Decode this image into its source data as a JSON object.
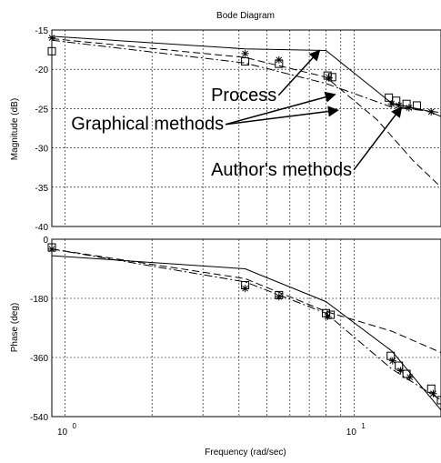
{
  "chart_data": {
    "type": "line",
    "title": "Bode Diagram",
    "xlabel": "Frequency  (rad/sec)",
    "x_scale": "log",
    "x_ticks": [
      {
        "value": 1,
        "label": "10",
        "exponent": "0"
      },
      {
        "value": 10,
        "label": "10",
        "exponent": "1"
      }
    ],
    "xlim": [
      0.9,
      20
    ],
    "subplots": [
      {
        "ylabel": "Magnitude (dB)",
        "ylim": [
          -40,
          -15
        ],
        "yticks": [
          -15,
          -20,
          -25,
          -30,
          -35,
          -40
        ],
        "series": [
          {
            "style": "solid",
            "x": [
              0.9,
              4.2,
              8,
              13.5,
              18,
              20
            ],
            "y": [
              -15.8,
              -17.4,
              -17.6,
              -24.3,
              -25.3,
              -26
            ]
          },
          {
            "style": "dash",
            "x": [
              0.9,
              4.2,
              8,
              12,
              16,
              20
            ],
            "y": [
              -16.1,
              -18.5,
              -21,
              -26.4,
              -31.6,
              -35
            ]
          },
          {
            "style": "dashdot",
            "x": [
              0.9,
              4.2,
              8,
              13.5,
              20
            ],
            "y": [
              -16.3,
              -19.2,
              -21.8,
              -24.8,
              -25.5
            ]
          }
        ],
        "markers_square": {
          "x": [
            0.9,
            4.2,
            5.5,
            8.1,
            8.4,
            13.2,
            14,
            15.2,
            16.5
          ],
          "y": [
            -17.7,
            -19.0,
            -19.3,
            -20.8,
            -21.0,
            -23.6,
            -24.0,
            -24.4,
            -24.6
          ]
        },
        "markers_star": {
          "x": [
            0.9,
            4.2,
            5.5,
            8.2,
            13.5,
            14.3,
            15.5,
            18.5
          ],
          "y": [
            -16.0,
            -18.0,
            -18.8,
            -21.1,
            -24.4,
            -24.6,
            -24.9,
            -25.4
          ]
        },
        "annotations": [
          {
            "text": "Process",
            "x": 3.2,
            "y": -24.0,
            "arrow_to": {
              "x": 7.6,
              "y": -17.6
            }
          },
          {
            "text": "Graphical methods",
            "x": 1.05,
            "y": -27.7,
            "arrow_to_list": [
              {
                "x": 8.6,
                "y": -23.2
              },
              {
                "x": 8.8,
                "y": -25.2
              }
            ]
          },
          {
            "text": "Author's methods",
            "x": 3.2,
            "y": -33.5,
            "arrow_to": {
              "x": 14.6,
              "y": -24.8
            }
          }
        ]
      },
      {
        "ylabel": "Phase (deg)",
        "ylim": [
          -540,
          0
        ],
        "yticks": [
          0,
          -180,
          -360,
          -540
        ],
        "series": [
          {
            "style": "solid",
            "x": [
              0.9,
              4.2,
              8,
              13.5,
              20
            ],
            "y": [
              -50,
              -90,
              -190,
              -340,
              -520
            ]
          },
          {
            "style": "dash",
            "x": [
              0.9,
              4.2,
              8,
              13.5,
              20
            ],
            "y": [
              -30,
              -120,
              -220,
              -280,
              -345
            ]
          },
          {
            "style": "dashdot",
            "x": [
              0.9,
              4.2,
              8,
              13.5,
              20
            ],
            "y": [
              -30,
              -130,
              -225,
              -395,
              -490
            ]
          }
        ],
        "markers_square": {
          "x": [
            0.9,
            4.2,
            5.5,
            8.0,
            8.3,
            13.4,
            14.3,
            15.2,
            18.5,
            20
          ],
          "y": [
            -25,
            -140,
            -170,
            -225,
            -230,
            -355,
            -385,
            -410,
            -455,
            -490
          ]
        },
        "markers_star": {
          "x": [
            0.9,
            4.2,
            5.5,
            8.1,
            13.6,
            14.5,
            15.6,
            18.8
          ],
          "y": [
            -30,
            -150,
            -175,
            -235,
            -370,
            -400,
            -420,
            -470
          ]
        }
      }
    ]
  }
}
